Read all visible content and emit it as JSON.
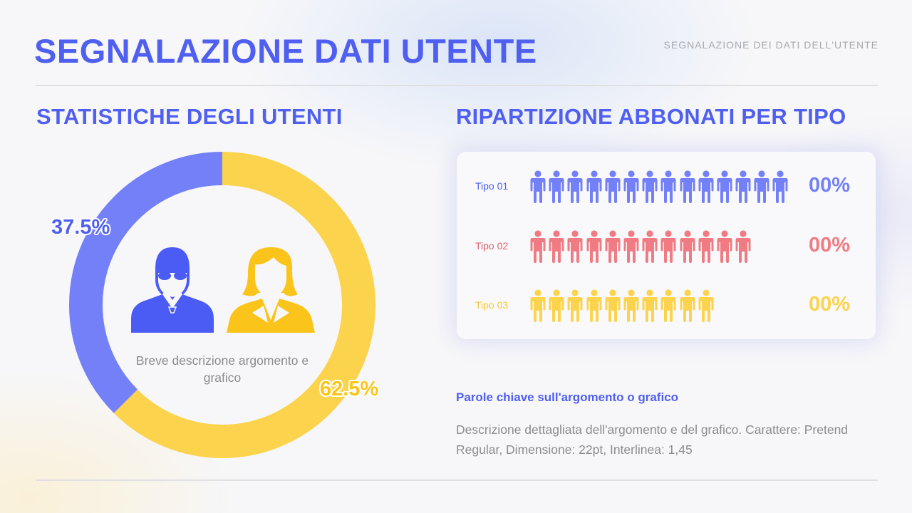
{
  "header": {
    "title": "SEGNALAZIONE DATI UTENTE",
    "subtitle": "SEGNALAZIONE DEI DATI DELL'UTENTE"
  },
  "left_section": {
    "title": "STATISTICHE DEGLI UTENTI",
    "description": "Breve descrizione argomento e grafico",
    "icons": [
      "male-user-icon",
      "female-user-icon"
    ]
  },
  "right_section": {
    "title": "RIPARTIZIONE ABBONATI PER TIPO",
    "rows": [
      {
        "label": "Tipo 01",
        "count": 14,
        "value": "00%",
        "color": "#7380f7",
        "label_color": "#4f5ff0"
      },
      {
        "label": "Tipo 02",
        "count": 12,
        "value": "00%",
        "color": "#f07b82",
        "label_color": "#e0636c"
      },
      {
        "label": "Tipo 03",
        "count": 10,
        "value": "00%",
        "color": "#fcd34c",
        "label_color": "#f8c934"
      }
    ],
    "keywords_title": "Parole chiave sull'argomento o grafico",
    "keywords_description": "Descrizione dettagliata dell'argomento e del grafico. Carattere: Pretend Regular, Dimensione: 22pt, Interlinea: 1,45"
  },
  "colors": {
    "accent": "#4f5ff0",
    "donut_blue": "#7380f7",
    "donut_yellow": "#fcd34c",
    "male_icon": "#4b5cf5",
    "female_icon": "#fbc41a",
    "text_gray": "#8c8c90"
  },
  "chart_data": [
    {
      "type": "pie",
      "subtype": "donut",
      "title": "STATISTICHE DEGLI UTENTI",
      "categories": [
        "Uomini",
        "Donne"
      ],
      "values": [
        37.5,
        62.5
      ],
      "labels": [
        "37.5%",
        "62.5%"
      ],
      "colors": [
        "#7380f7",
        "#fcd34c"
      ],
      "legend": "icons in center (male blue, female yellow)"
    },
    {
      "type": "bar",
      "subtype": "pictogram",
      "title": "RIPARTIZIONE ABBONATI PER TIPO",
      "categories": [
        "Tipo 01",
        "Tipo 02",
        "Tipo 03"
      ],
      "values": [
        14,
        12,
        10
      ],
      "value_labels": [
        "00%",
        "00%",
        "00%"
      ],
      "colors": [
        "#7380f7",
        "#f07b82",
        "#fcd34c"
      ],
      "unit": "person icons"
    }
  ]
}
